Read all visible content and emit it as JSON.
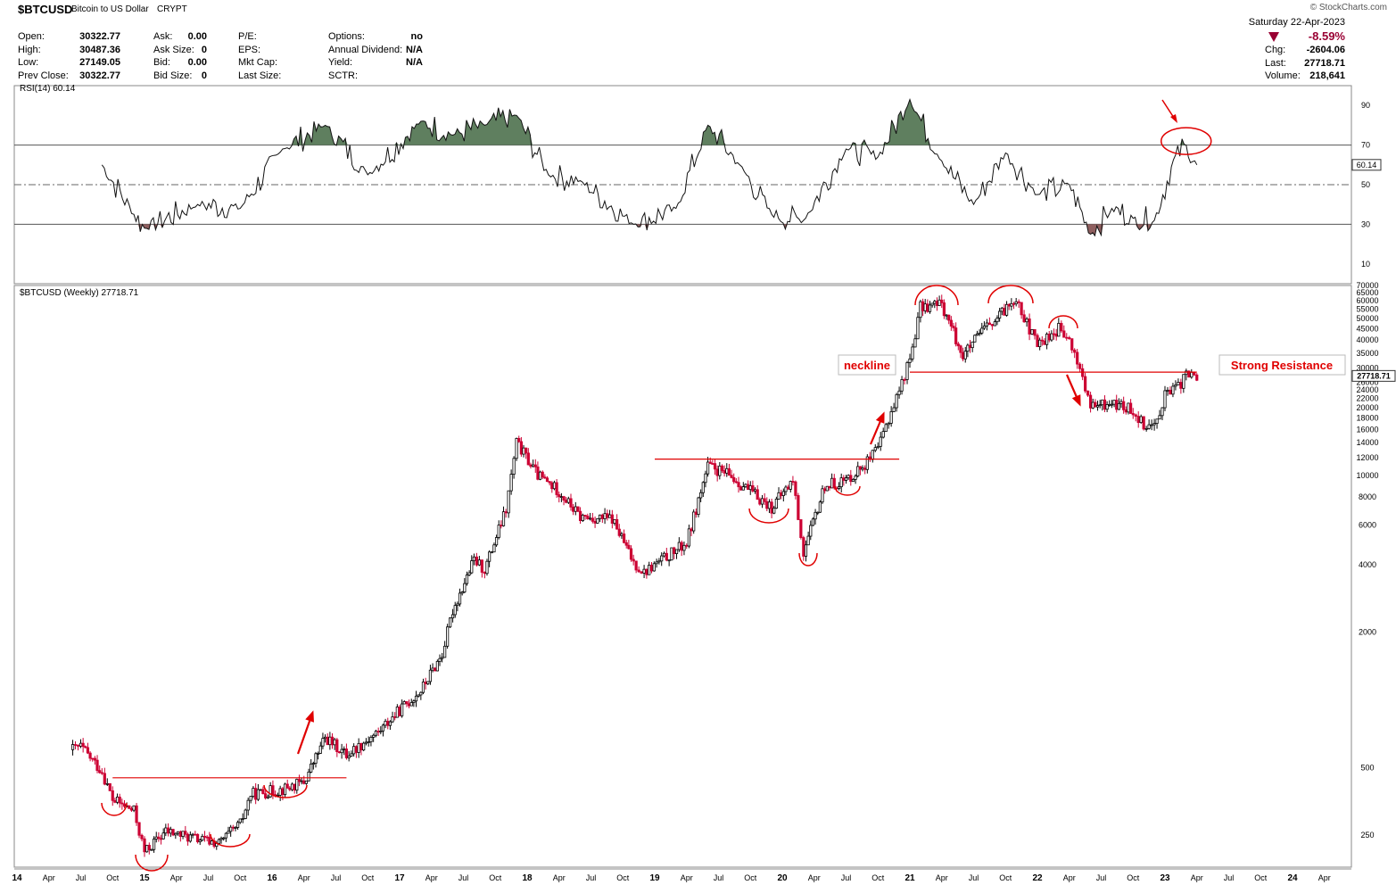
{
  "header": {
    "symbol": "$BTCUSD",
    "name": "Bitcoin to US Dollar",
    "exchange": "CRYPT",
    "copyright": "© StockCharts.com",
    "date": "Saturday  22-Apr-2023",
    "chg_pct": "-8.59%",
    "col1": [
      {
        "label": "Open:",
        "value": "30322.77"
      },
      {
        "label": "High:",
        "value": "30487.36"
      },
      {
        "label": "Low:",
        "value": "27149.05"
      },
      {
        "label": "Prev Close:",
        "value": "30322.77"
      }
    ],
    "col2": [
      {
        "label": "Ask:",
        "value": "0.00"
      },
      {
        "label": "Ask Size:",
        "value": "0"
      },
      {
        "label": "Bid:",
        "value": "0.00"
      },
      {
        "label": "Bid Size:",
        "value": "0"
      }
    ],
    "col3": [
      {
        "label": "P/E:",
        "value": ""
      },
      {
        "label": "EPS:",
        "value": ""
      },
      {
        "label": "Mkt Cap:",
        "value": ""
      },
      {
        "label": "Last Size:",
        "value": ""
      }
    ],
    "col4": [
      {
        "label": "Options:",
        "value": "no"
      },
      {
        "label": "Annual Dividend:",
        "value": "N/A"
      },
      {
        "label": "Yield:",
        "value": "N/A"
      },
      {
        "label": "SCTR:",
        "value": ""
      }
    ],
    "right": [
      {
        "label": "Chg:",
        "value": "-2604.06"
      },
      {
        "label": "Last:",
        "value": "27718.71"
      },
      {
        "label": "Volume:",
        "value": "218,641"
      }
    ]
  },
  "colors": {
    "up": "#000000",
    "down": "#cc0033",
    "annotation": "#e00000",
    "rsi_fill": "#5f7f5f",
    "grid": "#dddddd"
  },
  "chart_data": [
    {
      "type": "line",
      "title": "RSI(14) 60.14",
      "ylim": [
        0,
        100
      ],
      "y_ticks": [
        10,
        30,
        50,
        70,
        90
      ],
      "reference_lines": [
        30,
        50,
        70
      ],
      "last_value_label": "60.14",
      "x_dates": [
        "2014-09",
        "2014-12",
        "2015-01",
        "2015-06",
        "2015-10",
        "2016-02",
        "2016-06",
        "2016-10",
        "2017-03",
        "2017-06",
        "2017-09",
        "2017-12",
        "2018-03",
        "2018-06",
        "2018-11",
        "2019-03",
        "2019-06",
        "2019-09",
        "2019-12",
        "2020-03",
        "2020-07",
        "2020-10",
        "2021-01",
        "2021-04",
        "2021-07",
        "2021-10",
        "2022-01",
        "2022-04",
        "2022-06",
        "2022-08",
        "2022-10",
        "2022-12",
        "2023-02",
        "2023-03",
        "2023-04"
      ],
      "values": [
        60,
        35,
        28,
        40,
        38,
        68,
        80,
        55,
        82,
        75,
        80,
        85,
        55,
        52,
        30,
        38,
        80,
        60,
        35,
        32,
        68,
        64,
        93,
        62,
        40,
        66,
        45,
        50,
        25,
        38,
        33,
        32,
        65,
        70,
        60
      ]
    },
    {
      "type": "candlestick",
      "title": "$BTCUSD (Weekly) 27718.71",
      "y_scale": "log",
      "ylim": [
        180,
        70000
      ],
      "y_ticks": [
        250,
        500,
        2000,
        4000,
        6000,
        8000,
        10000,
        12000,
        14000,
        16000,
        18000,
        20000,
        22000,
        24000,
        26000,
        30000,
        35000,
        40000,
        45000,
        50000,
        55000,
        60000,
        65000,
        70000
      ],
      "last_price_label": "27718.71",
      "x_tick_labels": [
        "14",
        "Apr",
        "Jul",
        "Oct",
        "15",
        "Apr",
        "Jul",
        "Oct",
        "16",
        "Apr",
        "Jul",
        "Oct",
        "17",
        "Apr",
        "Jul",
        "Oct",
        "18",
        "Apr",
        "Jul",
        "Oct",
        "19",
        "Apr",
        "Jul",
        "Oct",
        "20",
        "Apr",
        "Jul",
        "Oct",
        "21",
        "Apr",
        "Jul",
        "Oct",
        "22",
        "Apr",
        "Jul",
        "Oct",
        "23",
        "Apr",
        "Jul",
        "Oct",
        "24",
        "Apr"
      ],
      "year_tick_labels": [
        "14",
        "15",
        "16",
        "17",
        "18",
        "19",
        "20",
        "21",
        "22",
        "23",
        "24"
      ],
      "x_dates": [
        "2014-06",
        "2014-07",
        "2014-09",
        "2014-10",
        "2014-12",
        "2015-01",
        "2015-03",
        "2015-06",
        "2015-08",
        "2015-10",
        "2015-11",
        "2016-02",
        "2016-04",
        "2016-06",
        "2016-08",
        "2016-11",
        "2017-01",
        "2017-03",
        "2017-05",
        "2017-06",
        "2017-08",
        "2017-09",
        "2017-11",
        "2017-12",
        "2018-02",
        "2018-04",
        "2018-06",
        "2018-09",
        "2018-11",
        "2018-12",
        "2019-04",
        "2019-06",
        "2019-08",
        "2019-10",
        "2019-12",
        "2020-02",
        "2020-03",
        "2020-05",
        "2020-07",
        "2020-09",
        "2020-10",
        "2020-11",
        "2020-12",
        "2021-01",
        "2021-02",
        "2021-04",
        "2021-06",
        "2021-08",
        "2021-09",
        "2021-11",
        "2021-12",
        "2022-01",
        "2022-03",
        "2022-04",
        "2022-05",
        "2022-06",
        "2022-08",
        "2022-10",
        "2022-11",
        "2022-12",
        "2023-01",
        "2023-02",
        "2023-03",
        "2023-04"
      ],
      "close": [
        600,
        620,
        480,
        360,
        320,
        210,
        260,
        240,
        230,
        280,
        380,
        400,
        430,
        680,
        570,
        720,
        900,
        1100,
        1600,
        2500,
        4200,
        3800,
        7000,
        14000,
        10000,
        8500,
        6500,
        6400,
        4100,
        3700,
        5000,
        11000,
        10000,
        8500,
        7200,
        9500,
        4500,
        9000,
        9500,
        11500,
        13000,
        18000,
        24000,
        33000,
        56000,
        58000,
        34000,
        45000,
        48000,
        63000,
        47000,
        38000,
        45000,
        39000,
        30000,
        20000,
        21000,
        19500,
        17000,
        16600,
        23000,
        24000,
        28000,
        27700
      ],
      "annotations": [
        {
          "type": "text",
          "label": "neckline"
        },
        {
          "type": "text",
          "label": "Strong Resistance"
        },
        {
          "type": "hline",
          "value": 28800,
          "from": "2021-01",
          "to": "2023-04"
        },
        {
          "type": "hline",
          "value": 11800,
          "from": "2019-01",
          "to": "2020-12"
        },
        {
          "type": "hline",
          "value": 450,
          "from": "2014-10",
          "to": "2016-08"
        }
      ]
    }
  ]
}
